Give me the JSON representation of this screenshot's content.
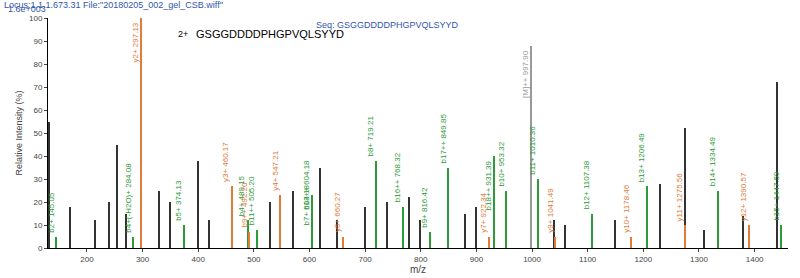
{
  "chart_data": {
    "type": "spectrum",
    "title": "Locus:1.1.1.673.31 File:\"20180205_002_gel_CSB.wiff\"",
    "subtitle": "Seq: GSGGDDDDPHGPVQLSYYD",
    "x_label": "m/z",
    "y_label": "Relative Intensity (%)",
    "y_scale_label": "1.6e+003",
    "annotations": [
      "2+",
      "GSGGDDDDPHGPVQLSYYD"
    ],
    "xlim": [
      130,
      1460
    ],
    "xticks": [
      200,
      300,
      400,
      500,
      600,
      700,
      800,
      900,
      1000,
      1100,
      1200,
      1300,
      1400
    ],
    "ylim": [
      0,
      100
    ],
    "yticks": [
      0,
      10,
      20,
      30,
      40,
      50,
      60,
      70,
      80,
      90,
      100
    ],
    "grid": false,
    "series": [
      {
        "color": "#333333",
        "x": [
          133,
          170,
          215,
          240,
          255,
          270,
          330,
          350,
          400,
          420,
          530,
          570,
          620,
          650,
          700,
          740,
          780,
          800,
          880,
          900,
          1040,
          1060,
          1150,
          1230,
          1275,
          1310,
          1380,
          1440
        ],
        "values": [
          55,
          18,
          12,
          20,
          45,
          15,
          25,
          20,
          38,
          12,
          20,
          25,
          35,
          12,
          18,
          20,
          22,
          12,
          15,
          18,
          12,
          10,
          12,
          28,
          52,
          8,
          14,
          72
        ]
      },
      {
        "color": "#2e9a3a",
        "x": [
          145.05,
          284.08,
          374.13,
          489.15,
          505.2,
          604.18,
          604.18,
          719.21,
          768.32,
          816.42,
          849.85,
          931.39,
          953.32,
          1010.36,
          1107.38,
          1206.49,
          1334.49,
          1447.59
        ],
        "values": [
          5,
          5,
          10,
          12,
          8,
          8,
          15,
          38,
          18,
          7,
          35,
          40,
          25,
          30,
          15,
          27,
          25,
          10
        ],
        "labels": [
          "b2+ 145.05",
          "b4+(-H2O)+ 284.08",
          "b5+ 374.13",
          "b4+ 489.15",
          "b11++ 505.20",
          "b7+ 604.18",
          "b13++ 604.18",
          "b8+ 719.21",
          "b16++ 768.32",
          "b9+ 816.42",
          "b17++ 849.85",
          "b18++ 931.39",
          "b10+ 953.32",
          "b11+ 1010.36",
          "b12+ 1107.38",
          "b13+ 1206.49",
          "b14+ 1334.49",
          "b15+ 1447.59"
        ]
      },
      {
        "color": "#e07b39",
        "x": [
          297.13,
          460.17,
          492.2,
          547.21,
          660.27,
          922.34,
          1041.49,
          1178.46,
          1275.56,
          1390.57
        ],
        "values": [
          100,
          27,
          7,
          23,
          5,
          5,
          5,
          5,
          10,
          10
        ],
        "labels": [
          "y2+ 297.13",
          "y3+ 460.17",
          "b9++ 492.20",
          "y4+ 547.21",
          "y5+ 660.27",
          "y7+ 922.34",
          "y9+ 1041.49",
          "y10+ 1178.46",
          "y11+ 1275.56",
          "y12+ 1390.57"
        ]
      },
      {
        "color": "#999999",
        "x": [
          997.9
        ],
        "values": [
          88
        ],
        "labels": [
          "[M]++ 997.90"
        ]
      }
    ]
  }
}
